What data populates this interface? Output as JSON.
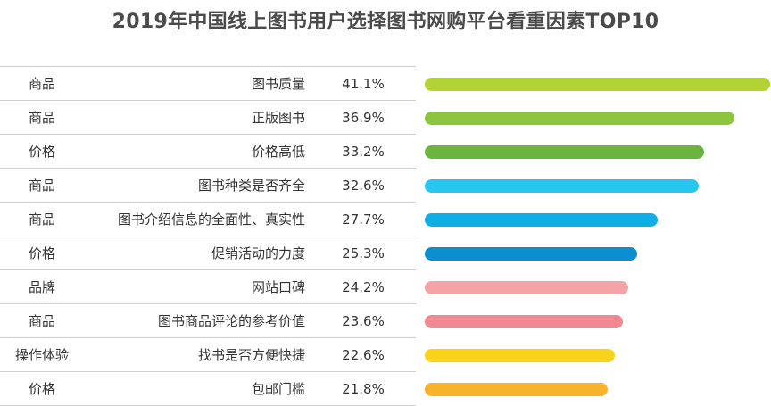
{
  "chart_data": {
    "type": "bar",
    "title": "2019年中国线上图书用户选择图书网购平台看重因素TOP10",
    "orientation": "horizontal",
    "grid": false,
    "rows": [
      {
        "category": "商品",
        "factor": "图书质量",
        "value": 41.1,
        "label": "41.1%",
        "color": "#b3d335"
      },
      {
        "category": "商品",
        "factor": "正版图书",
        "value": 36.9,
        "label": "36.9%",
        "color": "#8cc63f"
      },
      {
        "category": "价格",
        "factor": "价格高低",
        "value": 33.2,
        "label": "33.2%",
        "color": "#6bb43f"
      },
      {
        "category": "商品",
        "factor": "图书种类是否齐全",
        "value": 32.6,
        "label": "32.6%",
        "color": "#26c6f0"
      },
      {
        "category": "商品",
        "factor": "图书介绍信息的全面性、真实性",
        "value": 27.7,
        "label": "27.7%",
        "color": "#10aee6"
      },
      {
        "category": "价格",
        "factor": "促销活动的力度",
        "value": 25.3,
        "label": "25.3%",
        "color": "#0b8fd0"
      },
      {
        "category": "品牌",
        "factor": "网站口碑",
        "value": 24.2,
        "label": "24.2%",
        "color": "#f4a3a6"
      },
      {
        "category": "商品",
        "factor": "图书商品评论的参考价值",
        "value": 23.6,
        "label": "23.6%",
        "color": "#f08a90"
      },
      {
        "category": "操作体验",
        "factor": "找书是否方便快捷",
        "value": 22.6,
        "label": "22.6%",
        "color": "#f9d31a"
      },
      {
        "category": "价格",
        "factor": "包邮门槛",
        "value": 21.8,
        "label": "21.8%",
        "color": "#f7b32b"
      }
    ],
    "xlim": [
      0,
      41.1
    ]
  }
}
